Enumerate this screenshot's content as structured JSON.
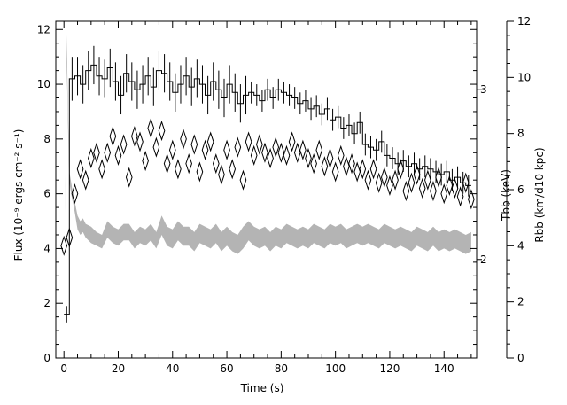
{
  "chart_data": {
    "type": "line",
    "title": "",
    "xlabel": "Time (s)",
    "ylabel": "Flux (10⁻⁹ ergs cm⁻² s⁻¹)",
    "y2label": "Tbb (keV)",
    "y3label": "Rbb (km/d10 kpc)",
    "xlim": [
      -3,
      152
    ],
    "ylim": [
      0,
      12.3
    ],
    "y2_tick_labels": [
      "2",
      "3"
    ],
    "y3lim": [
      0,
      12
    ],
    "x_ticks": [
      0,
      20,
      40,
      60,
      80,
      100,
      120,
      140
    ],
    "y_ticks": [
      0,
      2,
      4,
      6,
      8,
      10,
      12
    ],
    "y3_ticks": [
      0,
      2,
      4,
      6,
      8,
      10,
      12
    ],
    "grid": false,
    "legend": "none",
    "colors": {
      "flux": "#000000",
      "temperature": "#000000",
      "radius_band": "#b4b4b4"
    },
    "series": [
      {
        "name": "",
        "style": "histogram-with-errorbars",
        "x": [
          1,
          3,
          5,
          7,
          9,
          11,
          13,
          15,
          17,
          19,
          21,
          23,
          25,
          27,
          29,
          31,
          33,
          35,
          37,
          39,
          41,
          43,
          45,
          47,
          49,
          51,
          53,
          55,
          57,
          59,
          61,
          63,
          65,
          67,
          69,
          71,
          73,
          75,
          77,
          79,
          81,
          83,
          85,
          87,
          89,
          91,
          93,
          95,
          97,
          99,
          101,
          103,
          105,
          107,
          109,
          111,
          113,
          115,
          117,
          119,
          121,
          123,
          125,
          127,
          129,
          131,
          133,
          135,
          137,
          139,
          141,
          143,
          145,
          147,
          149
        ],
        "values": [
          1.6,
          10.2,
          10.3,
          10.0,
          10.5,
          10.7,
          10.3,
          10.2,
          10.6,
          10.1,
          9.6,
          10.4,
          10.1,
          9.8,
          10.0,
          10.3,
          9.9,
          10.5,
          10.4,
          10.1,
          9.7,
          10.0,
          10.3,
          9.9,
          10.2,
          10.0,
          9.6,
          10.1,
          9.8,
          9.5,
          10.0,
          9.7,
          9.3,
          9.6,
          9.7,
          9.6,
          9.4,
          9.8,
          9.5,
          9.8,
          9.7,
          9.6,
          9.5,
          9.3,
          9.4,
          9.1,
          9.2,
          8.9,
          9.1,
          8.7,
          8.8,
          8.4,
          8.5,
          8.2,
          8.6,
          7.8,
          7.7,
          7.6,
          7.9,
          7.4,
          7.3,
          7.1,
          7.2,
          7.0,
          7.1,
          6.9,
          7.0,
          6.9,
          6.8,
          6.7,
          6.8,
          6.5,
          6.6,
          6.4,
          6.3
        ],
        "errors": [
          0.3,
          0.8,
          0.7,
          0.7,
          0.7,
          0.7,
          0.7,
          0.7,
          0.7,
          0.7,
          0.7,
          0.7,
          0.7,
          0.7,
          0.7,
          0.7,
          0.7,
          0.7,
          0.7,
          0.7,
          0.7,
          0.7,
          0.7,
          0.7,
          0.7,
          0.7,
          0.7,
          0.7,
          0.7,
          0.7,
          0.7,
          0.7,
          0.7,
          0.7,
          0.4,
          0.4,
          0.4,
          0.4,
          0.4,
          0.4,
          0.4,
          0.4,
          0.4,
          0.4,
          0.4,
          0.4,
          0.4,
          0.4,
          0.4,
          0.4,
          0.4,
          0.4,
          0.4,
          0.4,
          0.4,
          0.4,
          0.4,
          0.4,
          0.4,
          0.4,
          0.4,
          0.4,
          0.4,
          0.4,
          0.4,
          0.4,
          0.4,
          0.4,
          0.4,
          0.4,
          0.4,
          0.4,
          0.4,
          0.4,
          0.4
        ]
      },
      {
        "name": "",
        "style": "diamonds",
        "x": [
          0,
          2,
          4,
          6,
          8,
          10,
          12,
          14,
          16,
          18,
          20,
          22,
          24,
          26,
          28,
          30,
          32,
          34,
          36,
          38,
          40,
          42,
          44,
          46,
          48,
          50,
          52,
          54,
          56,
          58,
          60,
          62,
          64,
          66,
          68,
          70,
          72,
          74,
          76,
          78,
          80,
          82,
          84,
          86,
          88,
          90,
          92,
          94,
          96,
          98,
          100,
          102,
          104,
          106,
          108,
          110,
          112,
          114,
          116,
          118,
          120,
          122,
          124,
          126,
          128,
          130,
          132,
          134,
          136,
          138,
          140,
          142,
          144,
          146,
          148,
          150
        ],
        "values": [
          4.1,
          4.4,
          6.0,
          6.9,
          6.5,
          7.3,
          7.5,
          6.9,
          7.5,
          8.1,
          7.4,
          7.8,
          6.6,
          8.1,
          7.9,
          7.2,
          8.4,
          7.7,
          8.3,
          7.1,
          7.6,
          6.9,
          8.0,
          7.1,
          7.8,
          6.8,
          7.6,
          7.9,
          7.1,
          6.7,
          7.6,
          6.9,
          7.7,
          6.5,
          7.9,
          7.4,
          7.8,
          7.5,
          7.3,
          7.7,
          7.5,
          7.4,
          7.9,
          7.5,
          7.6,
          7.3,
          7.1,
          7.6,
          7.0,
          7.3,
          6.8,
          7.4,
          7.0,
          7.1,
          6.8,
          6.9,
          6.5,
          6.9,
          6.4,
          6.6,
          6.3,
          6.5,
          6.9,
          6.1,
          6.4,
          6.7,
          6.2,
          6.5,
          6.1,
          6.6,
          6.0,
          6.3,
          6.2,
          5.9,
          6.4,
          5.8
        ]
      },
      {
        "name": "",
        "style": "shaded-band",
        "x": [
          0.5,
          1,
          1.5,
          2,
          2.5,
          3,
          3.5,
          4,
          5,
          6,
          7,
          8,
          10,
          12,
          14,
          16,
          18,
          20,
          22,
          24,
          26,
          28,
          30,
          32,
          34,
          36,
          38,
          40,
          42,
          44,
          46,
          48,
          50,
          52,
          54,
          56,
          58,
          60,
          62,
          64,
          66,
          68,
          70,
          72,
          74,
          76,
          78,
          80,
          82,
          84,
          86,
          88,
          90,
          92,
          94,
          96,
          98,
          100,
          102,
          104,
          106,
          108,
          110,
          112,
          114,
          116,
          118,
          120,
          122,
          124,
          126,
          128,
          130,
          132,
          134,
          136,
          138,
          140,
          142,
          144,
          146,
          148,
          150
        ],
        "upper": [
          5.5,
          11.8,
          9.0,
          6.8,
          6.5,
          6.2,
          6.0,
          5.7,
          5.2,
          5.0,
          5.1,
          4.9,
          4.8,
          4.6,
          4.5,
          5.0,
          4.8,
          4.7,
          4.9,
          4.9,
          4.6,
          4.8,
          4.7,
          4.9,
          4.6,
          5.2,
          4.8,
          4.7,
          5.0,
          4.8,
          4.8,
          4.6,
          4.9,
          4.8,
          4.7,
          4.9,
          4.6,
          4.8,
          4.6,
          4.5,
          4.8,
          5.0,
          4.8,
          4.7,
          4.8,
          4.6,
          4.8,
          4.7,
          4.9,
          4.8,
          4.7,
          4.8,
          4.7,
          4.9,
          4.8,
          4.7,
          4.9,
          4.8,
          4.9,
          4.7,
          4.8,
          4.9,
          4.8,
          4.9,
          4.8,
          4.7,
          4.9,
          4.8,
          4.7,
          4.8,
          4.7,
          4.6,
          4.8,
          4.7,
          4.6,
          4.8,
          4.6,
          4.7,
          4.6,
          4.7,
          4.6,
          4.5,
          4.6
        ],
        "lower": [
          5.3,
          10.8,
          8.4,
          6.4,
          6.1,
          5.8,
          5.6,
          5.3,
          4.7,
          4.5,
          4.6,
          4.4,
          4.2,
          4.1,
          4.0,
          4.4,
          4.2,
          4.1,
          4.3,
          4.3,
          4.0,
          4.2,
          4.1,
          4.3,
          4.0,
          4.5,
          4.1,
          4.0,
          4.3,
          4.1,
          4.1,
          3.9,
          4.2,
          4.1,
          4.0,
          4.2,
          3.9,
          4.1,
          3.9,
          3.8,
          4.0,
          4.3,
          4.1,
          4.0,
          4.1,
          3.9,
          4.1,
          4.0,
          4.2,
          4.1,
          4.0,
          4.1,
          4.0,
          4.2,
          4.1,
          4.0,
          4.2,
          4.1,
          4.2,
          4.0,
          4.1,
          4.2,
          4.1,
          4.2,
          4.1,
          4.0,
          4.2,
          4.1,
          4.0,
          4.1,
          4.0,
          3.9,
          4.1,
          4.0,
          3.9,
          4.1,
          3.9,
          4.0,
          3.9,
          4.0,
          3.9,
          3.8,
          3.9
        ]
      }
    ]
  }
}
